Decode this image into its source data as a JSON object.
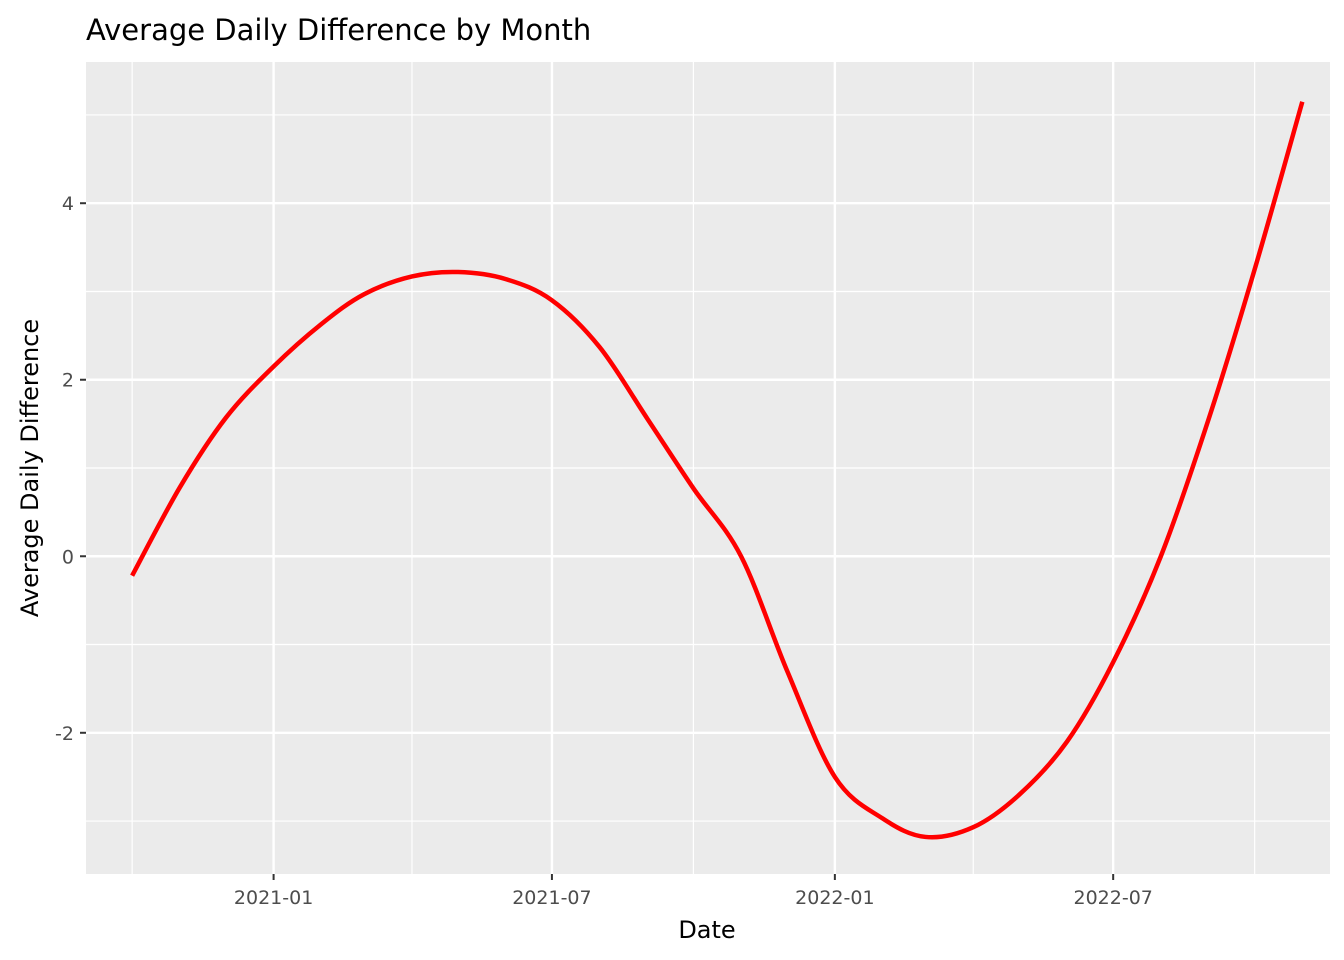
{
  "chart_data": {
    "type": "line",
    "title": "Average Daily Difference by Month",
    "xlabel": "Date",
    "ylabel": "Average Daily Difference",
    "x_tick_labels": [
      "2021-01",
      "2021-07",
      "2022-01",
      "2022-07"
    ],
    "x_tick_dates": [
      "2021-01-01",
      "2021-07-01",
      "2022-01-01",
      "2022-07-01"
    ],
    "x_minor_dates": [
      "2020-10-01",
      "2021-04-01",
      "2021-10-01",
      "2022-04-01",
      "2022-10-01"
    ],
    "y_tick_labels": [
      "-2",
      "0",
      "2",
      "4"
    ],
    "y_ticks": [
      -2,
      0,
      2,
      4
    ],
    "y_minor_ticks": [
      -3,
      -1,
      1,
      3,
      5
    ],
    "xlim": [
      "2020-09-01",
      "2022-11-19"
    ],
    "ylim": [
      -3.6,
      5.6
    ],
    "grid": true,
    "legend": "none",
    "colors": {
      "panel": "#ebebeb",
      "grid": "#ffffff",
      "line": "#ff0000"
    },
    "series": [
      {
        "x": [
          "2020-10-01",
          "2020-11-01",
          "2020-12-01",
          "2021-01-01",
          "2021-02-01",
          "2021-03-01",
          "2021-04-01",
          "2021-05-01",
          "2021-06-01",
          "2021-07-01",
          "2021-08-01",
          "2021-09-01",
          "2021-10-01",
          "2021-11-01",
          "2021-12-01",
          "2022-01-01",
          "2022-02-01",
          "2022-03-01",
          "2022-04-01",
          "2022-05-01",
          "2022-06-01",
          "2022-07-01",
          "2022-08-01",
          "2022-09-01",
          "2022-10-01",
          "2022-11-01"
        ],
        "values": [
          -0.22,
          0.78,
          1.57,
          2.15,
          2.63,
          2.97,
          3.17,
          3.22,
          3.14,
          2.9,
          2.37,
          1.56,
          0.77,
          0.0,
          -1.3,
          -2.5,
          -2.97,
          -3.18,
          -3.07,
          -2.7,
          -2.1,
          -1.2,
          0.0,
          1.55,
          3.25,
          5.15
        ]
      }
    ]
  }
}
